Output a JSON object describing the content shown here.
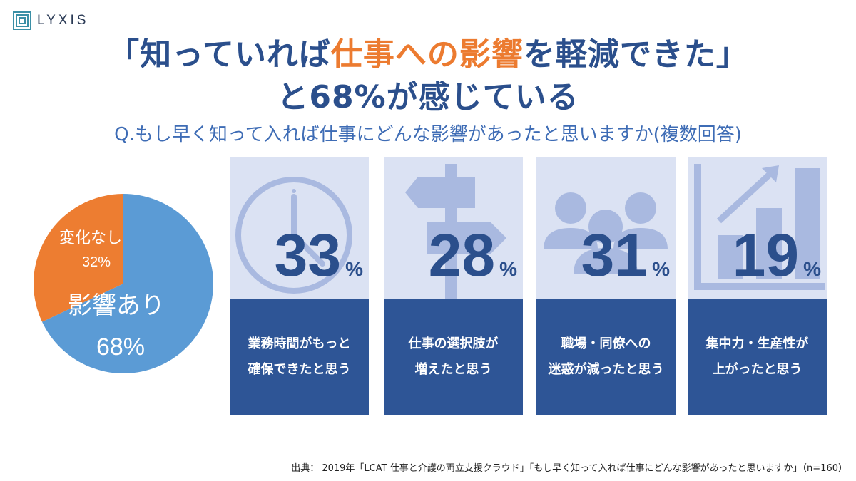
{
  "brand": {
    "name": "LYXIS"
  },
  "headline": {
    "line1_a": "「知っていれば",
    "line1_accent": "仕事への影響",
    "line1_b": "を軽減できた」",
    "line2": "と68%が感じている"
  },
  "question": "Q.もし早く知って入れば仕事にどんな影響があったと思いますか(複数回答)",
  "colors": {
    "accent": "#ec7b30",
    "primary": "#2e5596",
    "pie_blue": "#5b9bd5",
    "pie_orange": "#ed7d31",
    "card_bg": "#dbe2f3",
    "icon": "#a9b9e0"
  },
  "chart_data": [
    {
      "type": "pie",
      "slices": [
        {
          "label": "影響あり",
          "value": 68,
          "display": "68%"
        },
        {
          "label": "変化なし",
          "value": 32,
          "display": "32%"
        }
      ]
    },
    {
      "type": "bar",
      "categories": [
        "業務時間がもっと確保できたと思う",
        "仕事の選択肢が増えたと思う",
        "職場・同僚への迷惑が減ったと思う",
        "集中力・生産性が上がったと思う"
      ],
      "values": [
        33,
        28,
        31,
        19
      ],
      "unit": "%"
    }
  ],
  "cards": [
    {
      "value": "33",
      "unit": "%",
      "label_line1": "業務時間がもっと",
      "label_line2": "確保できたと思う",
      "icon": "clock-icon"
    },
    {
      "value": "28",
      "unit": "%",
      "label_line1": "仕事の選択肢が",
      "label_line2": "増えたと思う",
      "icon": "signpost-icon"
    },
    {
      "value": "31",
      "unit": "%",
      "label_line1": "職場・同僚への",
      "label_line2": "迷惑が減ったと思う",
      "icon": "people-icon"
    },
    {
      "value": "19",
      "unit": "%",
      "label_line1": "集中力・生産性が",
      "label_line2": "上がったと思う",
      "icon": "growth-chart-icon"
    }
  ],
  "source": "出典： 2019年「LCAT 仕事と介護の両立支援クラウド」「もし早く知って入れば仕事にどんな影響があったと思いますか」（n=160）"
}
